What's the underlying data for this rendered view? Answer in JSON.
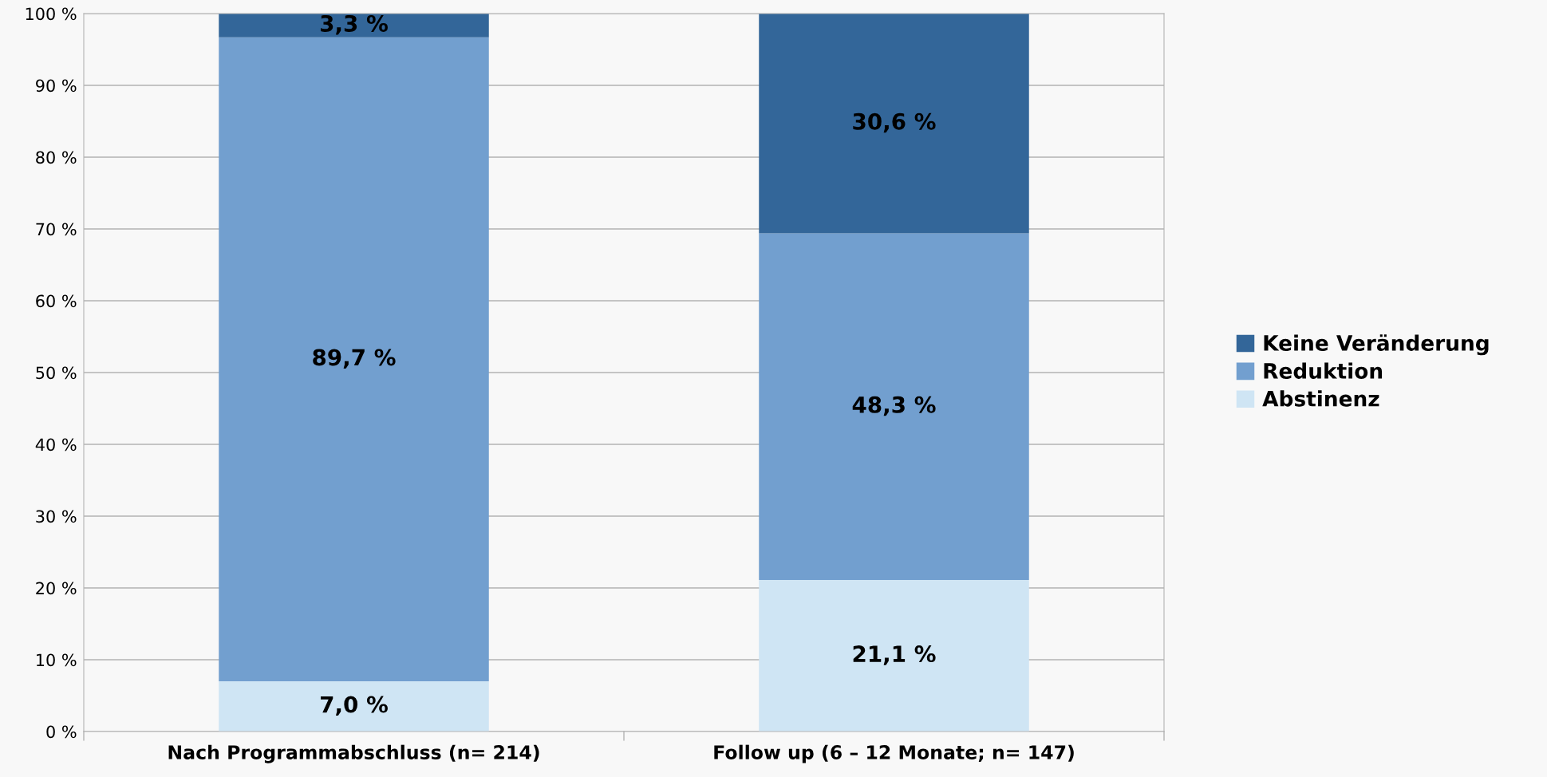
{
  "chart_data": {
    "type": "bar",
    "stacked": true,
    "categories": [
      "Nach Programmabschluss (n= 214)",
      "Follow up (6 – 12 Monate; n= 147)"
    ],
    "series": [
      {
        "name": "Abstinenz",
        "color": "#cfe5f4",
        "values": [
          7.0,
          21.1
        ],
        "value_labels": [
          "7,0 %",
          "21,1 %"
        ]
      },
      {
        "name": "Reduktion",
        "color": "#729fcf",
        "values": [
          89.7,
          48.3
        ],
        "value_labels": [
          "89,7 %",
          "48,3 %"
        ]
      },
      {
        "name": "Keine Veränderung",
        "color": "#336699",
        "values": [
          3.3,
          30.6
        ],
        "value_labels": [
          "3,3 %",
          "30,6 %"
        ]
      }
    ],
    "ylim": [
      0,
      100
    ],
    "yticks": [
      {
        "value": 0,
        "label": "0 %"
      },
      {
        "value": 10,
        "label": "10 %"
      },
      {
        "value": 20,
        "label": "20 %"
      },
      {
        "value": 30,
        "label": "30 %"
      },
      {
        "value": 40,
        "label": "40 %"
      },
      {
        "value": 50,
        "label": "50 %"
      },
      {
        "value": 60,
        "label": "60 %"
      },
      {
        "value": 70,
        "label": "70 %"
      },
      {
        "value": 80,
        "label": "80 %"
      },
      {
        "value": 90,
        "label": "90 %"
      },
      {
        "value": 100,
        "label": "100 %"
      }
    ],
    "grid": "y",
    "legend": "right"
  }
}
